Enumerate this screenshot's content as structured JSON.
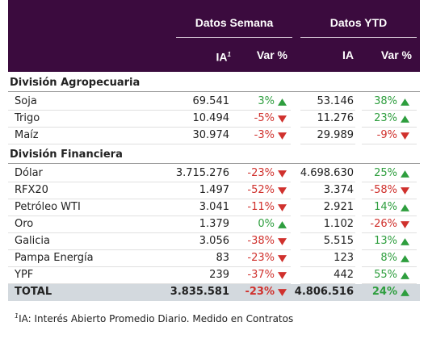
{
  "header": {
    "groups": [
      "Datos Semana",
      "Datos YTD"
    ],
    "columns": [
      "IA",
      "Var %",
      "IA",
      "Var %"
    ],
    "mark": "1"
  },
  "sections": [
    {
      "title": "División Agropecuaria",
      "rows": [
        [
          "Soja",
          "69.541",
          "3%",
          "53.146",
          "38%"
        ],
        [
          "Trigo",
          "10.494",
          "-5%",
          "11.276",
          "23%"
        ],
        [
          "Maíz",
          "30.974",
          "-3%",
          "29.989",
          "-9%"
        ]
      ]
    },
    {
      "title": "División Financiera",
      "rows": [
        [
          "Dólar",
          "3.715.276",
          "-23%",
          "4.698.630",
          "25%"
        ],
        [
          "RFX20",
          "1.497",
          "-52%",
          "3.374",
          "-58%"
        ],
        [
          "Petróleo WTI",
          "3.041",
          "-11%",
          "2.921",
          "14%"
        ],
        [
          "Oro",
          "1.379",
          "0%",
          "1.102",
          "-26%"
        ],
        [
          "Galicia",
          "3.056",
          "-38%",
          "5.515",
          "13%"
        ],
        [
          "Pampa Energía",
          "83",
          "-23%",
          "123",
          "8%"
        ],
        [
          "YPF",
          "239",
          "-37%",
          "442",
          "55%"
        ]
      ]
    }
  ],
  "total": [
    "TOTAL",
    "3.835.581",
    "-23%",
    "4.806.516",
    "24%"
  ],
  "footnote": {
    "mark": "1",
    "text": "IA: Interés Abierto Promedio Diario. Medido en Contratos"
  }
}
